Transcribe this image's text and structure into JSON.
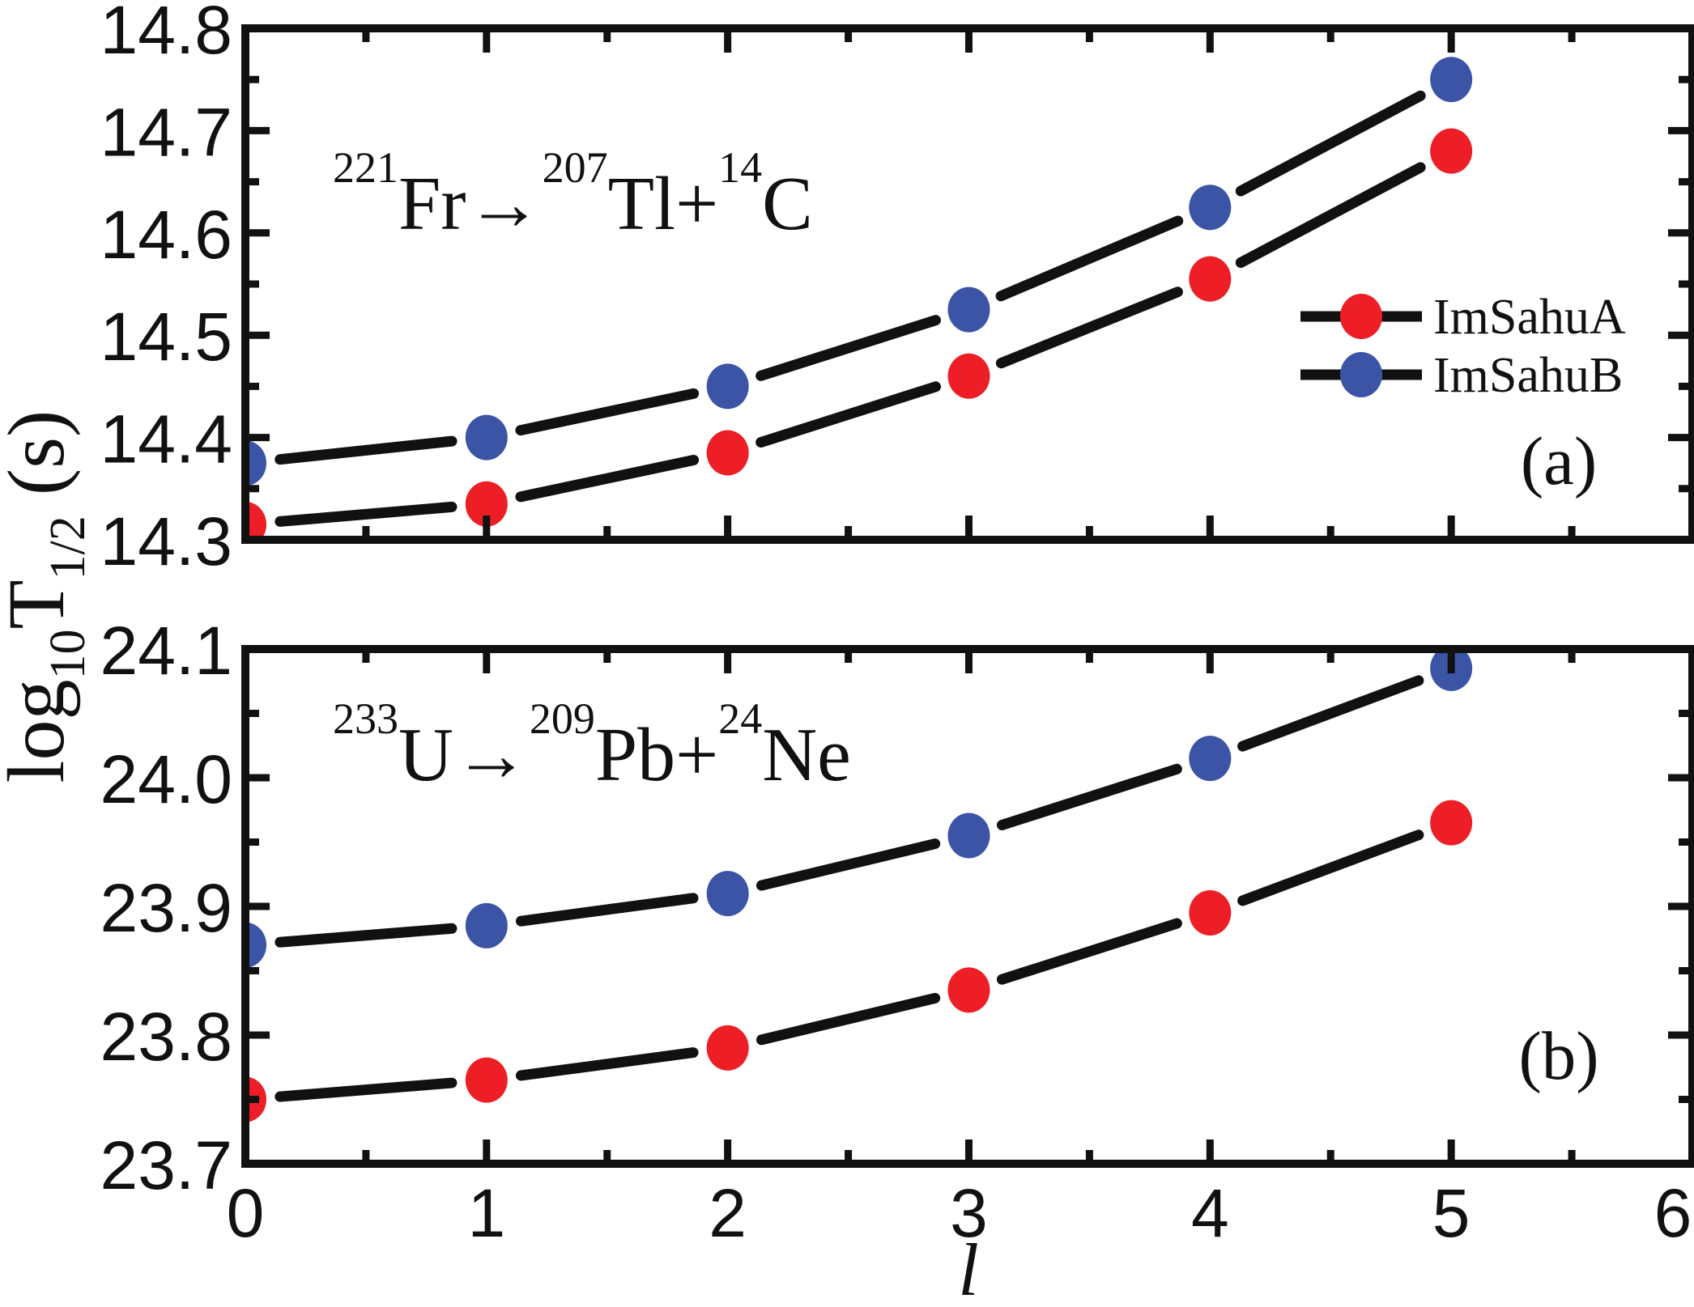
{
  "figure": {
    "background": "#ffffff",
    "xlabel": "l",
    "ylabel_plain": "log10 T1/2 (s)",
    "ylabel_parts": [
      {
        "t": "log"
      },
      {
        "t": "10",
        "sub": true
      },
      {
        "t": "T"
      },
      {
        "t": "1/2",
        "sub": true
      },
      {
        "t": " (s)"
      }
    ],
    "legend": {
      "position": "right-middle-of-panel-a",
      "items": [
        {
          "label": "ImSahuA",
          "color": "#ED1E26"
        },
        {
          "label": "ImSahuB",
          "color": "#3B54A5"
        }
      ]
    },
    "line_color": "#111111",
    "frame_color": "#111111"
  },
  "chart_data": [
    {
      "type": "line",
      "panel_label": "(a)",
      "title_plain": "221Fr→207Tl+14C",
      "title_parts": [
        {
          "t": "221",
          "sup": true
        },
        {
          "t": "Fr→"
        },
        {
          "t": "207",
          "sup": true
        },
        {
          "t": "Tl+"
        },
        {
          "t": "14",
          "sup": true
        },
        {
          "t": "C"
        }
      ],
      "x": [
        0,
        1,
        2,
        3,
        4,
        5
      ],
      "series": [
        {
          "name": "ImSahuA",
          "color": "#ED1E26",
          "values": [
            14.315,
            14.335,
            14.385,
            14.46,
            14.555,
            14.68
          ]
        },
        {
          "name": "ImSahuB",
          "color": "#3B54A5",
          "values": [
            14.375,
            14.4,
            14.45,
            14.525,
            14.625,
            14.75
          ]
        }
      ],
      "xlim": [
        0,
        6
      ],
      "ylim": [
        14.3,
        14.8
      ],
      "xticks": [
        0,
        1,
        2,
        3,
        4,
        5,
        6
      ],
      "xtick_labels": [
        "0",
        "1",
        "2",
        "3",
        "4",
        "5",
        "6"
      ],
      "yticks": [
        14.3,
        14.4,
        14.5,
        14.6,
        14.7,
        14.8
      ],
      "ytick_labels": [
        "14.3",
        "14.4",
        "14.5",
        "14.6",
        "14.7",
        "14.8"
      ],
      "minor_x_step": 0.5,
      "minor_y_step": 0.05,
      "grid": false,
      "legend_in_panel": true
    },
    {
      "type": "line",
      "panel_label": "(b)",
      "title_plain": "233U→209Pb+24Ne",
      "title_parts": [
        {
          "t": "233",
          "sup": true
        },
        {
          "t": "U→"
        },
        {
          "t": "209",
          "sup": true
        },
        {
          "t": "Pb+"
        },
        {
          "t": "24",
          "sup": true
        },
        {
          "t": "Ne"
        }
      ],
      "x": [
        0,
        1,
        2,
        3,
        4,
        5
      ],
      "series": [
        {
          "name": "ImSahuA",
          "color": "#ED1E26",
          "values": [
            23.75,
            23.765,
            23.79,
            23.835,
            23.895,
            23.965
          ]
        },
        {
          "name": "ImSahuB",
          "color": "#3B54A5",
          "values": [
            23.87,
            23.885,
            23.91,
            23.955,
            24.015,
            24.085
          ]
        }
      ],
      "xlim": [
        0,
        6
      ],
      "ylim": [
        23.7,
        24.1
      ],
      "xticks": [
        0,
        1,
        2,
        3,
        4,
        5,
        6
      ],
      "xtick_labels": [
        "0",
        "1",
        "2",
        "3",
        "4",
        "5",
        "6"
      ],
      "yticks": [
        23.7,
        23.8,
        23.9,
        24.0,
        24.1
      ],
      "ytick_labels": [
        "23.7",
        "23.8",
        "23.9",
        "24.0",
        "24.1"
      ],
      "minor_x_step": 0.5,
      "minor_y_step": 0.05,
      "grid": false,
      "legend_in_panel": false
    }
  ]
}
